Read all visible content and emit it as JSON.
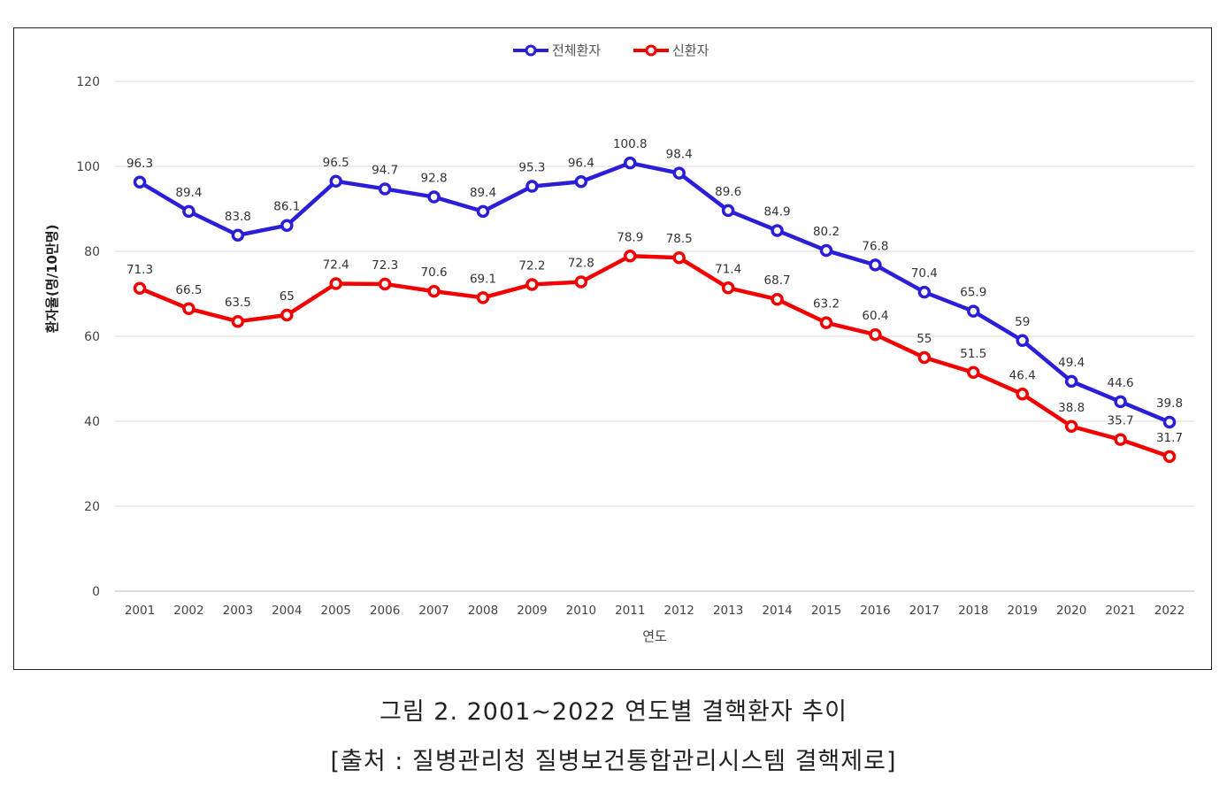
{
  "chart_data": {
    "type": "line",
    "title": "",
    "xlabel": "연도",
    "ylabel": "환자율(명/10만명)",
    "ylim": [
      0,
      120
    ],
    "yticks": [
      0,
      20,
      40,
      60,
      80,
      100,
      120
    ],
    "grid": true,
    "legend_position": "top-center",
    "categories": [
      "2001",
      "2002",
      "2003",
      "2004",
      "2005",
      "2006",
      "2007",
      "2008",
      "2009",
      "2010",
      "2011",
      "2012",
      "2013",
      "2014",
      "2015",
      "2016",
      "2017",
      "2018",
      "2019",
      "2020",
      "2021",
      "2022"
    ],
    "series": [
      {
        "name": "전체환자",
        "color": "#2A1ED8",
        "values": [
          96.3,
          89.4,
          83.8,
          86.1,
          96.5,
          94.7,
          92.8,
          89.4,
          95.3,
          96.4,
          100.8,
          98.4,
          89.6,
          84.9,
          80.2,
          76.8,
          70.4,
          65.9,
          59,
          49.4,
          44.6,
          39.8
        ]
      },
      {
        "name": "신환자",
        "color": "#F20000",
        "values": [
          71.3,
          66.5,
          63.5,
          65,
          72.4,
          72.3,
          70.6,
          69.1,
          72.2,
          72.8,
          78.9,
          78.5,
          71.4,
          68.7,
          63.2,
          60.4,
          55,
          51.5,
          46.4,
          38.8,
          35.7,
          31.7
        ]
      }
    ]
  },
  "caption": {
    "line1": "그림 2. 2001~2022 연도별 결핵환자 추이",
    "line2": "[출처 : 질병관리청 질병보건통합관리시스템 결핵제로]"
  }
}
